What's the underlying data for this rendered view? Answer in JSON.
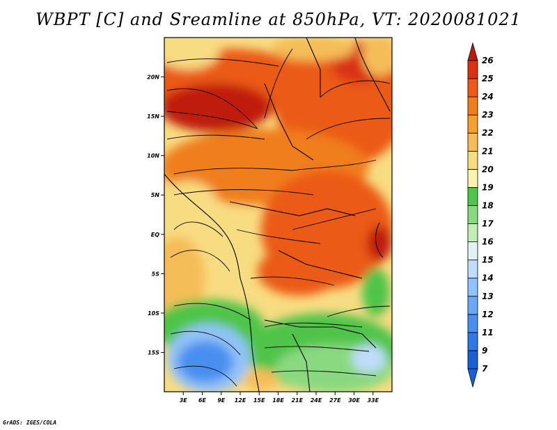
{
  "title": "WBPT [C] and Sreamline at 850hPa, VT: 2020081021",
  "credit": "GrADS: IGES/COLA",
  "map": {
    "lon_range": [
      0,
      36
    ],
    "lat_range": [
      -20,
      25
    ],
    "lat_ticks": [
      "20N",
      "15N",
      "10N",
      "5N",
      "EQ",
      "5S",
      "10S",
      "15S"
    ],
    "lon_ticks": [
      "3E",
      "6E",
      "9E",
      "12E",
      "15E",
      "18E",
      "21E",
      "24E",
      "27E",
      "30E",
      "33E"
    ]
  },
  "colorbar": {
    "labels": [
      "7",
      "9",
      "11",
      "12",
      "13",
      "14",
      "15",
      "16",
      "17",
      "18",
      "19",
      "20",
      "21",
      "22",
      "23",
      "24",
      "25",
      "26"
    ],
    "colors": [
      "#1a5fd6",
      "#2f78e6",
      "#4a8ff0",
      "#6aa9f5",
      "#92c3f8",
      "#bfdcfa",
      "#e3f2f6",
      "#c4ecb8",
      "#8ad980",
      "#4fc44a",
      "#fbf3b0",
      "#f8dc82",
      "#f5bd58",
      "#f3a02f",
      "#f07e1f",
      "#eb5a17",
      "#d93212",
      "#c01a0c"
    ]
  }
}
